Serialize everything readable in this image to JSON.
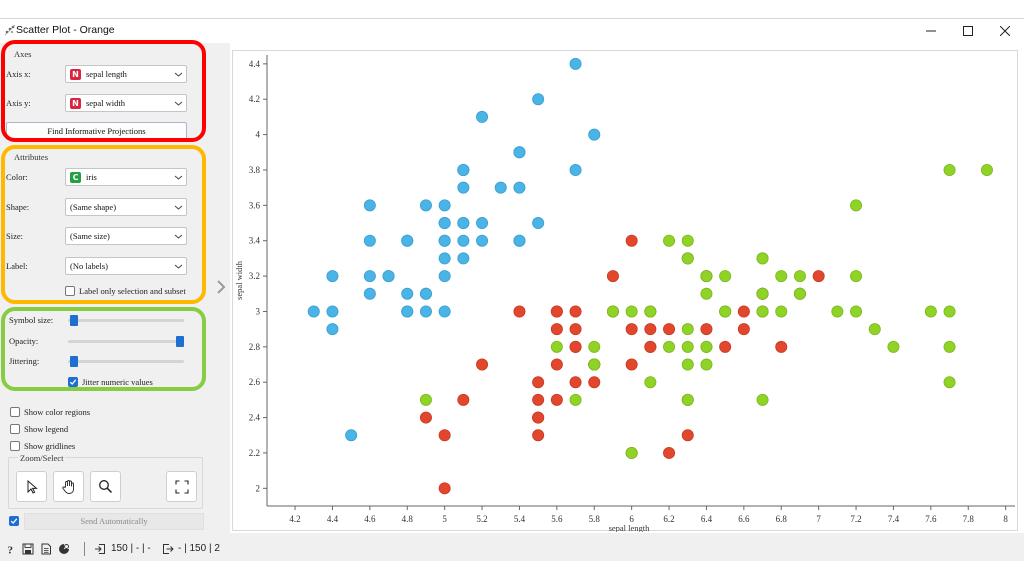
{
  "window": {
    "title": "Scatter Plot - Orange",
    "controls": [
      "minimize",
      "maximize",
      "close"
    ]
  },
  "axes_box": {
    "title": "Axes",
    "x_label": "Axis x:",
    "x_value": "sepal length",
    "x_badge": "N",
    "y_label": "Axis y:",
    "y_value": "sepal width",
    "y_badge": "N",
    "find_button": "Find Informative Projections"
  },
  "attributes_box": {
    "title": "Attributes",
    "color_label": "Color:",
    "color_value": "iris",
    "color_badge": "C",
    "shape_label": "Shape:",
    "shape_value": "(Same shape)",
    "size_label": "Size:",
    "size_value": "(Same size)",
    "label_label": "Label:",
    "label_value": "(No labels)",
    "label_only_text": "Label only selection and subset",
    "label_only_checked": false
  },
  "visual_box": {
    "symbol_size_label": "Symbol size:",
    "symbol_size_level": 0.02,
    "opacity_label": "Opacity:",
    "opacity_level": 1.0,
    "jittering_label": "Jittering:",
    "jittering_level": 0.02,
    "jitter_numeric_text": "Jitter numeric values",
    "jitter_numeric_checked": true
  },
  "options": {
    "show_color_regions": "Show color regions",
    "show_legend": "Show legend",
    "show_gridlines": "Show gridlines"
  },
  "zoom_select": {
    "title": "Zoom/Select"
  },
  "send": {
    "label": "Send Automatically",
    "checked": true
  },
  "status": {
    "input_text": "150 | - | -",
    "output_text": "- | 150 | 2"
  },
  "colors": {
    "setosa": "#4ab4e6",
    "versicolor": "#e2472e",
    "virginica": "#8fd326",
    "highlight_red": "#ff0000",
    "highlight_orange": "#ffb800",
    "highlight_green": "#88cc44",
    "accent": "#1f6fd1"
  },
  "chart_data": {
    "type": "scatter",
    "title": "",
    "xlabel": "sepal length",
    "ylabel": "sepal width",
    "xlim": [
      4.05,
      8.05
    ],
    "ylim": [
      1.9,
      4.45
    ],
    "x_ticks": [
      "4.2",
      "4.4",
      "4.6",
      "4.8",
      "5",
      "5.2",
      "5.4",
      "5.6",
      "5.8",
      "6",
      "6.2",
      "6.4",
      "6.6",
      "6.8",
      "7",
      "7.2",
      "7.4",
      "7.6",
      "7.8",
      "8"
    ],
    "y_ticks": [
      "2",
      "2.2",
      "2.4",
      "2.6",
      "2.8",
      "3",
      "3.2",
      "3.4",
      "3.6",
      "3.8",
      "4",
      "4.2",
      "4.4"
    ],
    "grid": false,
    "series": [
      {
        "color": "#4ab4e6",
        "points": [
          [
            5.1,
            3.5
          ],
          [
            4.9,
            3.0
          ],
          [
            4.7,
            3.2
          ],
          [
            4.6,
            3.1
          ],
          [
            5.0,
            3.6
          ],
          [
            5.4,
            3.9
          ],
          [
            4.6,
            3.4
          ],
          [
            5.0,
            3.4
          ],
          [
            4.4,
            2.9
          ],
          [
            4.9,
            3.1
          ],
          [
            5.4,
            3.7
          ],
          [
            4.8,
            3.4
          ],
          [
            4.8,
            3.0
          ],
          [
            4.3,
            3.0
          ],
          [
            5.8,
            4.0
          ],
          [
            5.7,
            4.4
          ],
          [
            5.4,
            3.9
          ],
          [
            5.1,
            3.5
          ],
          [
            5.7,
            3.8
          ],
          [
            5.1,
            3.8
          ],
          [
            5.4,
            3.4
          ],
          [
            5.1,
            3.7
          ],
          [
            4.6,
            3.6
          ],
          [
            5.1,
            3.3
          ],
          [
            4.8,
            3.4
          ],
          [
            5.0,
            3.0
          ],
          [
            5.0,
            3.4
          ],
          [
            5.2,
            3.5
          ],
          [
            5.2,
            3.4
          ],
          [
            4.7,
            3.2
          ],
          [
            4.8,
            3.1
          ],
          [
            5.4,
            3.4
          ],
          [
            5.2,
            4.1
          ],
          [
            5.5,
            4.2
          ],
          [
            4.9,
            3.1
          ],
          [
            5.0,
            3.2
          ],
          [
            5.5,
            3.5
          ],
          [
            4.9,
            3.6
          ],
          [
            4.4,
            3.0
          ],
          [
            5.1,
            3.4
          ],
          [
            5.0,
            3.5
          ],
          [
            4.5,
            2.3
          ],
          [
            4.4,
            3.2
          ],
          [
            5.0,
            3.5
          ],
          [
            5.1,
            3.8
          ],
          [
            4.8,
            3.0
          ],
          [
            5.1,
            3.8
          ],
          [
            4.6,
            3.2
          ],
          [
            5.3,
            3.7
          ],
          [
            5.0,
            3.3
          ]
        ]
      },
      {
        "color": "#e2472e",
        "points": [
          [
            7.0,
            3.2
          ],
          [
            6.4,
            3.2
          ],
          [
            6.9,
            3.1
          ],
          [
            5.5,
            2.3
          ],
          [
            6.5,
            2.8
          ],
          [
            5.7,
            2.8
          ],
          [
            6.3,
            3.3
          ],
          [
            4.9,
            2.4
          ],
          [
            6.6,
            2.9
          ],
          [
            5.2,
            2.7
          ],
          [
            5.0,
            2.0
          ],
          [
            5.9,
            3.0
          ],
          [
            6.0,
            2.2
          ],
          [
            6.1,
            2.9
          ],
          [
            5.6,
            2.9
          ],
          [
            6.7,
            3.1
          ],
          [
            5.6,
            3.0
          ],
          [
            5.8,
            2.7
          ],
          [
            6.2,
            2.2
          ],
          [
            5.6,
            2.5
          ],
          [
            5.9,
            3.2
          ],
          [
            6.1,
            2.8
          ],
          [
            6.3,
            2.5
          ],
          [
            6.1,
            2.8
          ],
          [
            6.4,
            2.9
          ],
          [
            6.6,
            3.0
          ],
          [
            6.8,
            2.8
          ],
          [
            6.7,
            3.0
          ],
          [
            6.0,
            2.9
          ],
          [
            5.7,
            2.6
          ],
          [
            5.5,
            2.4
          ],
          [
            5.5,
            2.4
          ],
          [
            5.8,
            2.7
          ],
          [
            6.0,
            2.7
          ],
          [
            5.4,
            3.0
          ],
          [
            6.0,
            3.4
          ],
          [
            6.7,
            3.1
          ],
          [
            6.3,
            2.3
          ],
          [
            5.6,
            3.0
          ],
          [
            5.5,
            2.5
          ],
          [
            5.5,
            2.6
          ],
          [
            6.1,
            3.0
          ],
          [
            5.8,
            2.6
          ],
          [
            5.0,
            2.3
          ],
          [
            5.6,
            2.7
          ],
          [
            5.7,
            3.0
          ],
          [
            5.7,
            2.9
          ],
          [
            6.2,
            2.9
          ],
          [
            5.1,
            2.5
          ],
          [
            5.7,
            2.8
          ]
        ]
      },
      {
        "color": "#8fd326",
        "points": [
          [
            6.3,
            3.3
          ],
          [
            5.8,
            2.7
          ],
          [
            7.1,
            3.0
          ],
          [
            6.3,
            2.9
          ],
          [
            6.5,
            3.0
          ],
          [
            7.6,
            3.0
          ],
          [
            4.9,
            2.5
          ],
          [
            7.3,
            2.9
          ],
          [
            6.7,
            2.5
          ],
          [
            7.2,
            3.6
          ],
          [
            6.5,
            3.2
          ],
          [
            6.4,
            2.7
          ],
          [
            6.8,
            3.0
          ],
          [
            5.7,
            2.5
          ],
          [
            5.8,
            2.8
          ],
          [
            6.4,
            3.2
          ],
          [
            6.5,
            3.0
          ],
          [
            7.7,
            3.8
          ],
          [
            7.7,
            2.6
          ],
          [
            6.0,
            2.2
          ],
          [
            6.9,
            3.2
          ],
          [
            5.6,
            2.8
          ],
          [
            7.7,
            2.8
          ],
          [
            6.3,
            2.7
          ],
          [
            6.7,
            3.3
          ],
          [
            7.2,
            3.2
          ],
          [
            6.2,
            2.8
          ],
          [
            6.1,
            3.0
          ],
          [
            6.4,
            2.8
          ],
          [
            7.2,
            3.0
          ],
          [
            7.4,
            2.8
          ],
          [
            7.9,
            3.8
          ],
          [
            6.4,
            2.8
          ],
          [
            6.3,
            2.8
          ],
          [
            6.1,
            2.6
          ],
          [
            7.7,
            3.0
          ],
          [
            6.3,
            3.4
          ],
          [
            6.4,
            3.1
          ],
          [
            6.0,
            3.0
          ],
          [
            6.9,
            3.1
          ],
          [
            6.7,
            3.1
          ],
          [
            6.9,
            3.1
          ],
          [
            5.8,
            2.7
          ],
          [
            6.8,
            3.2
          ],
          [
            6.7,
            3.3
          ],
          [
            6.7,
            3.0
          ],
          [
            6.3,
            2.5
          ],
          [
            6.5,
            3.0
          ],
          [
            6.2,
            3.4
          ],
          [
            5.9,
            3.0
          ]
        ]
      }
    ]
  }
}
